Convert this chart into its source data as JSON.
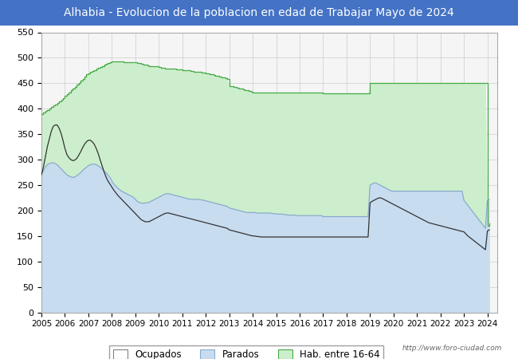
{
  "title": "Alhabia - Evolucion de la poblacion en edad de Trabajar Mayo de 2024",
  "title_bg_color": "#4472C4",
  "title_text_color": "#FFFFFF",
  "ylim": [
    0,
    550
  ],
  "yticks": [
    0,
    50,
    100,
    150,
    200,
    250,
    300,
    350,
    400,
    450,
    500,
    550
  ],
  "watermark": "http://www.foro-ciudad.com",
  "background_color": "#FFFFFF",
  "plot_bg_color": "#F5F5F5",
  "grid_color": "#CCCCCC",
  "hab_color": "#CCEECC",
  "hab_edge_color": "#44AA44",
  "parados_color": "#C8DCF0",
  "parados_edge_color": "#88AACC",
  "ocupados_color": "#333333",
  "legend_labels": [
    "Ocupados",
    "Parados",
    "Hab. entre 16-64"
  ],
  "xmin": 2005,
  "xmax": 2024.42,
  "xticks": [
    2005,
    2006,
    2007,
    2008,
    2009,
    2010,
    2011,
    2012,
    2013,
    2014,
    2015,
    2016,
    2017,
    2018,
    2019,
    2020,
    2021,
    2022,
    2023,
    2024
  ],
  "hab16_64": [
    390,
    393,
    396,
    398,
    400,
    403,
    406,
    408,
    411,
    414,
    417,
    420,
    425,
    428,
    432,
    436,
    440,
    443,
    447,
    451,
    455,
    459,
    463,
    467,
    470,
    472,
    474,
    476,
    478,
    480,
    482,
    484,
    486,
    488,
    490,
    492,
    493,
    493,
    493,
    493,
    493,
    493,
    492,
    492,
    492,
    492,
    492,
    492,
    491,
    490,
    489,
    488,
    487,
    486,
    485,
    484,
    483,
    483,
    483,
    483,
    482,
    481,
    480,
    479,
    479,
    479,
    478,
    478,
    478,
    477,
    477,
    477,
    476,
    476,
    475,
    475,
    474,
    474,
    473,
    473,
    472,
    472,
    471,
    471,
    470,
    469,
    468,
    467,
    466,
    465,
    464,
    463,
    462,
    461,
    460,
    459,
    445,
    444,
    443,
    442,
    441,
    440,
    439,
    438,
    437,
    436,
    435,
    434,
    432,
    432,
    432,
    432,
    432,
    432,
    432,
    432,
    432,
    432,
    432,
    432,
    432,
    432,
    432,
    432,
    432,
    432,
    432,
    432,
    432,
    432,
    432,
    432,
    432,
    432,
    432,
    432,
    432,
    432,
    432,
    432,
    432,
    432,
    432,
    432,
    430,
    430,
    430,
    430,
    430,
    430,
    430,
    430,
    430,
    430,
    430,
    430,
    430,
    430,
    430,
    430,
    430,
    430,
    430,
    430,
    430,
    430,
    430,
    430,
    450,
    450,
    450,
    450,
    450,
    450,
    450,
    450,
    450,
    450,
    450,
    450,
    450,
    450,
    450,
    450,
    450,
    450,
    450,
    450,
    450,
    450,
    450,
    450,
    450,
    450,
    450,
    450,
    450,
    450,
    450,
    450,
    450,
    450,
    450,
    450,
    450,
    450,
    450,
    450,
    450,
    450,
    450,
    450,
    450,
    450,
    450,
    450,
    450,
    450,
    450,
    450,
    450,
    450,
    450,
    450,
    450,
    450,
    450,
    450,
    170,
    175
  ],
  "parados": [
    270,
    278,
    285,
    290,
    292,
    293,
    294,
    292,
    290,
    286,
    282,
    278,
    274,
    270,
    268,
    266,
    265,
    266,
    268,
    271,
    274,
    278,
    282,
    285,
    288,
    290,
    291,
    291,
    290,
    288,
    285,
    282,
    278,
    274,
    270,
    265,
    258,
    252,
    248,
    244,
    241,
    238,
    236,
    234,
    232,
    230,
    228,
    226,
    222,
    218,
    216,
    215,
    214,
    215,
    215,
    216,
    218,
    220,
    222,
    224,
    226,
    228,
    230,
    232,
    233,
    233,
    232,
    231,
    230,
    229,
    228,
    227,
    226,
    225,
    224,
    223,
    222,
    222,
    222,
    222,
    222,
    221,
    221,
    220,
    219,
    218,
    217,
    216,
    215,
    214,
    213,
    212,
    211,
    210,
    209,
    208,
    205,
    204,
    203,
    202,
    201,
    200,
    199,
    198,
    197,
    196,
    196,
    196,
    196,
    196,
    195,
    195,
    195,
    195,
    195,
    195,
    195,
    195,
    194,
    194,
    193,
    193,
    193,
    193,
    192,
    192,
    191,
    191,
    191,
    191,
    190,
    190,
    190,
    190,
    190,
    190,
    190,
    190,
    190,
    190,
    190,
    190,
    190,
    190,
    188,
    188,
    188,
    188,
    188,
    188,
    188,
    188,
    188,
    188,
    188,
    188,
    188,
    188,
    188,
    188,
    188,
    188,
    188,
    188,
    188,
    188,
    188,
    188,
    250,
    252,
    254,
    254,
    252,
    250,
    248,
    246,
    244,
    242,
    240,
    238,
    238,
    238,
    238,
    238,
    238,
    238,
    238,
    238,
    238,
    238,
    238,
    238,
    238,
    238,
    238,
    238,
    238,
    238,
    238,
    238,
    238,
    238,
    238,
    238,
    238,
    238,
    238,
    238,
    238,
    238,
    238,
    238,
    238,
    238,
    238,
    238,
    220,
    215,
    210,
    205,
    200,
    195,
    190,
    185,
    180,
    175,
    170,
    165,
    220,
    222
  ],
  "ocupados": [
    270,
    285,
    305,
    325,
    340,
    355,
    365,
    368,
    368,
    362,
    352,
    338,
    322,
    310,
    304,
    300,
    298,
    299,
    302,
    308,
    315,
    323,
    330,
    335,
    338,
    338,
    335,
    330,
    322,
    312,
    300,
    288,
    276,
    266,
    258,
    252,
    246,
    240,
    235,
    230,
    226,
    222,
    218,
    214,
    210,
    206,
    202,
    198,
    194,
    190,
    186,
    182,
    180,
    178,
    178,
    178,
    180,
    182,
    184,
    186,
    188,
    190,
    192,
    194,
    195,
    195,
    194,
    193,
    192,
    191,
    190,
    189,
    188,
    187,
    186,
    185,
    184,
    183,
    182,
    181,
    180,
    179,
    178,
    177,
    176,
    175,
    174,
    173,
    172,
    171,
    170,
    169,
    168,
    167,
    166,
    165,
    162,
    161,
    160,
    159,
    158,
    157,
    156,
    155,
    154,
    153,
    152,
    151,
    150,
    150,
    149,
    149,
    148,
    148,
    148,
    148,
    148,
    148,
    148,
    148,
    148,
    148,
    148,
    148,
    148,
    148,
    148,
    148,
    148,
    148,
    148,
    148,
    148,
    148,
    148,
    148,
    148,
    148,
    148,
    148,
    148,
    148,
    148,
    148,
    148,
    148,
    148,
    148,
    148,
    148,
    148,
    148,
    148,
    148,
    148,
    148,
    148,
    148,
    148,
    148,
    148,
    148,
    148,
    148,
    148,
    148,
    148,
    148,
    215,
    218,
    220,
    222,
    224,
    225,
    224,
    222,
    220,
    218,
    216,
    214,
    212,
    210,
    208,
    206,
    204,
    202,
    200,
    198,
    196,
    194,
    192,
    190,
    188,
    186,
    184,
    182,
    180,
    178,
    176,
    175,
    174,
    173,
    172,
    171,
    170,
    169,
    168,
    167,
    166,
    165,
    164,
    163,
    162,
    161,
    160,
    159,
    158,
    154,
    150,
    147,
    144,
    141,
    138,
    135,
    132,
    129,
    126,
    123,
    160,
    162
  ]
}
